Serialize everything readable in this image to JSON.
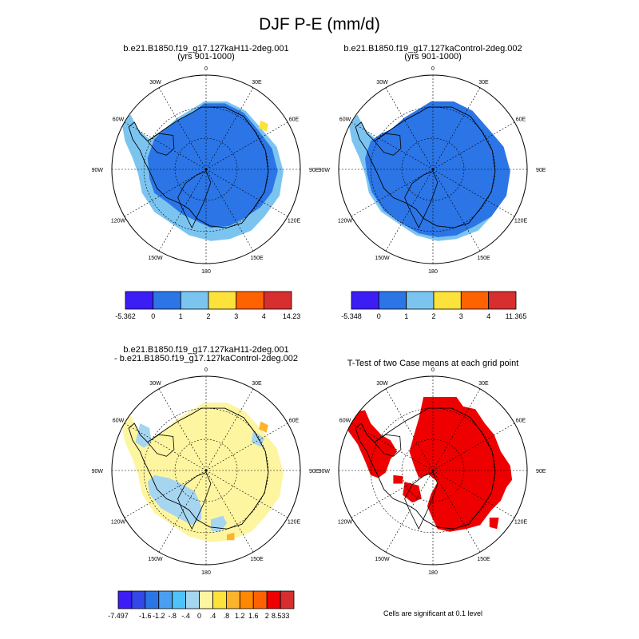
{
  "page": {
    "title": "DJF P-E (mm/d)"
  },
  "chart_data": [
    {
      "type": "heatmap",
      "projection": "south-polar-stereographic",
      "title": "b.e21.B1850.f19_g17.127kaH11-2deg.001",
      "subtitle": "(yrs 901-1000)",
      "lon_labels": [
        "0",
        "30E",
        "60E",
        "90E",
        "120E",
        "150E",
        "180",
        "150W",
        "120W",
        "90W",
        "60W",
        "30W"
      ],
      "fill_colors": [
        "#2b75e6",
        "#7cc4f0",
        "#fde23c"
      ],
      "colorbar": {
        "colors": [
          "#3d1df5",
          "#2b75e6",
          "#7cc4f0",
          "#fde23c",
          "#ff6200",
          "#d72f2f"
        ],
        "labels": [
          "-5.362",
          "0",
          "1",
          "2",
          "3",
          "4",
          "14.23"
        ]
      }
    },
    {
      "type": "heatmap",
      "projection": "south-polar-stereographic",
      "title": "b.e21.B1850.f19_g17.127kaControl-2deg.002",
      "subtitle": "(yrs 901-1000)",
      "lon_labels": [
        "0",
        "30E",
        "60E",
        "90E",
        "120E",
        "150E",
        "180",
        "150W",
        "120W",
        "90W",
        "60W",
        "30W"
      ],
      "fill_colors": [
        "#2b75e6",
        "#7cc4f0",
        "#fde23c"
      ],
      "colorbar": {
        "colors": [
          "#3d1df5",
          "#2b75e6",
          "#7cc4f0",
          "#fde23c",
          "#ff6200",
          "#d72f2f"
        ],
        "labels": [
          "-5.348",
          "0",
          "1",
          "2",
          "3",
          "4",
          "11.365"
        ]
      }
    },
    {
      "type": "heatmap",
      "projection": "south-polar-stereographic",
      "title": "b.e21.B1850.f19_g17.127kaH11-2deg.001",
      "subtitle": "- b.e21.B1850.f19_g17.127kaControl-2deg.002",
      "lon_labels": [
        "0",
        "30E",
        "60E",
        "90E",
        "120E",
        "150E",
        "180",
        "150W",
        "120W",
        "90W",
        "60W",
        "30W"
      ],
      "fill_colors": [
        "#fdf5a0",
        "#a6d5f0",
        "#fdb32c"
      ],
      "colorbar": {
        "colors": [
          "#3d1df5",
          "#3348e6",
          "#2b75e6",
          "#4a9ff0",
          "#4fc3f7",
          "#a6d5f0",
          "#fdf5a0",
          "#fde23c",
          "#fdb32c",
          "#ff8800",
          "#ff6200",
          "#ee0000",
          "#d72f2f"
        ],
        "labels": [
          "-7.497",
          "",
          "-1.6",
          "-1.2",
          "-.8",
          "-.4",
          "0",
          ".4",
          ".8",
          "1.2",
          "1.6",
          "2",
          "8.533"
        ]
      }
    },
    {
      "type": "heatmap",
      "projection": "south-polar-stereographic",
      "title": "T-Test of two Case means at each grid point",
      "lon_labels": [
        "0",
        "30E",
        "60E",
        "90E",
        "120E",
        "150E",
        "180",
        "150W",
        "120W",
        "90W",
        "60W",
        "30W"
      ],
      "fill_colors": [
        "#ee0000"
      ],
      "note": "Cells are significant at 0.1 level"
    }
  ]
}
